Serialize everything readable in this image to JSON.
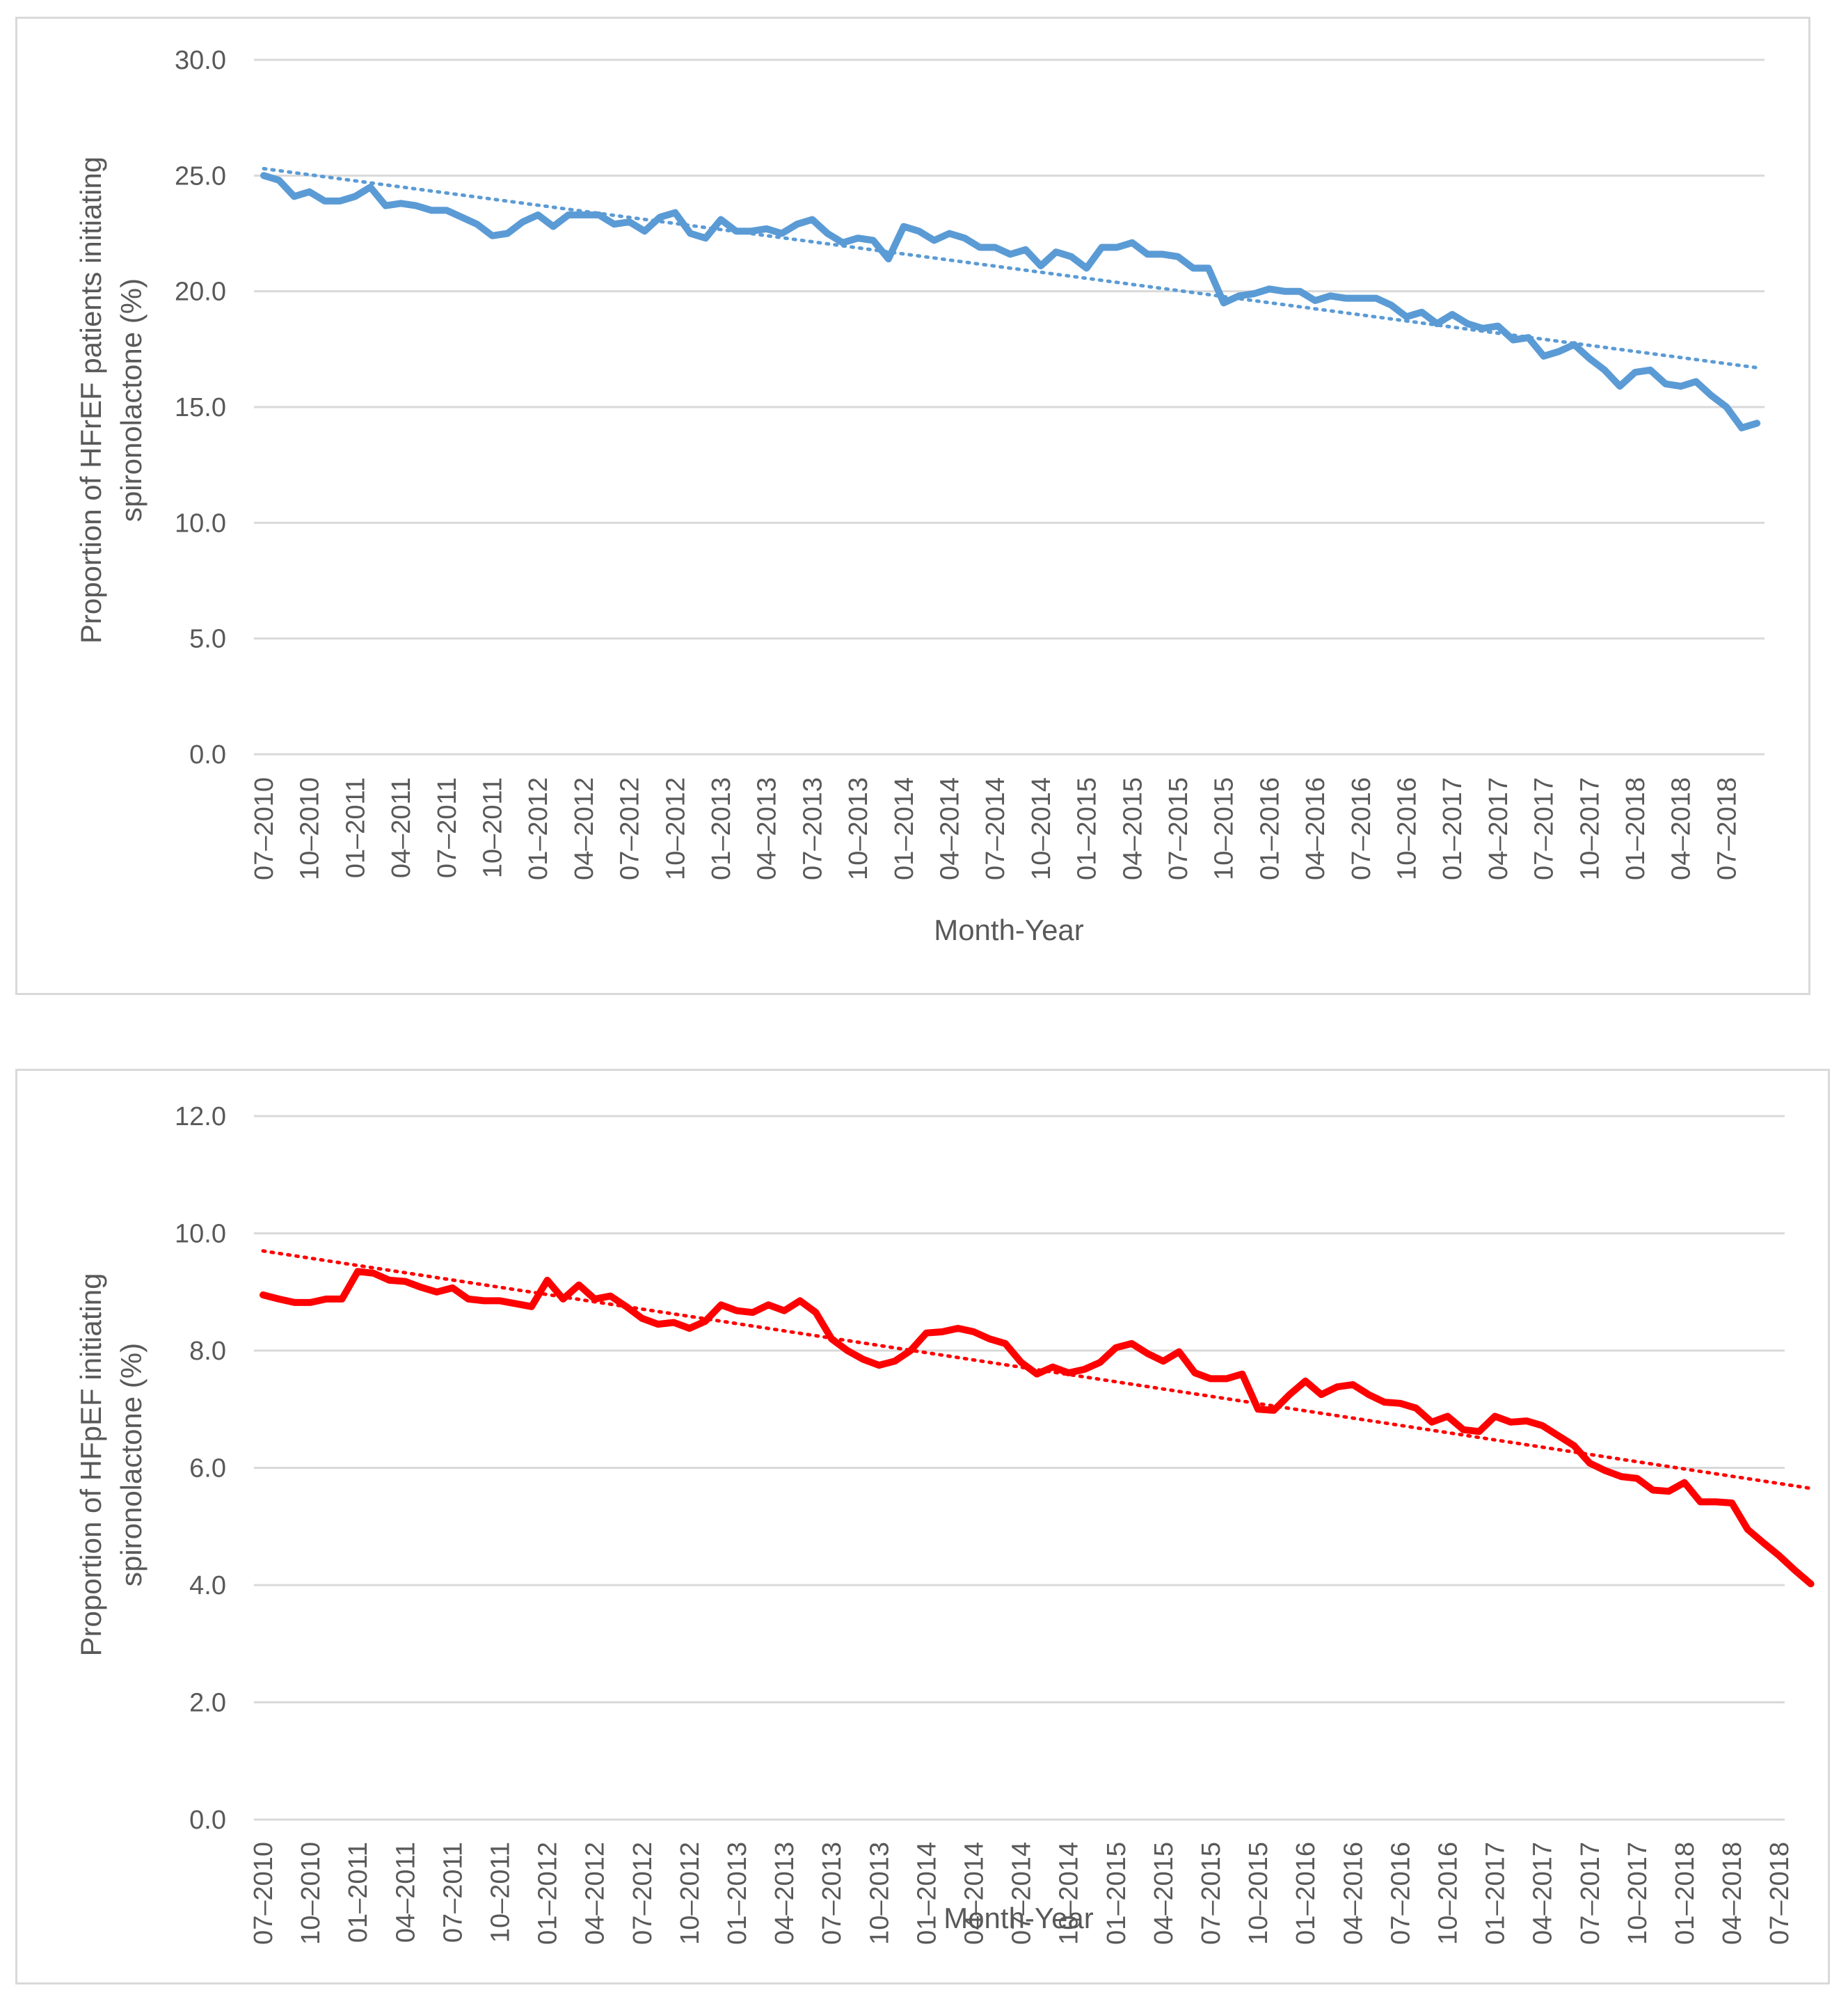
{
  "chart_data": [
    {
      "type": "line",
      "title": "",
      "xlabel": "Month-Year",
      "ylabel_line1": "Proportion of HFrEF patients initiating",
      "ylabel_line2": "spironolactone (%)",
      "ylim": [
        0,
        30
      ],
      "y_ticks": [
        "0.0",
        "5.0",
        "10.0",
        "15.0",
        "20.0",
        "25.0",
        "30.0"
      ],
      "x_tick_labels": [
        "07–2010",
        "10–2010",
        "01–2011",
        "04–2011",
        "07–2011",
        "10–2011",
        "01–2012",
        "04–2012",
        "07–2012",
        "10–2012",
        "01–2013",
        "04–2013",
        "07–2013",
        "10–2013",
        "01–2014",
        "04–2014",
        "07–2014",
        "10–2014",
        "01–2015",
        "04–2015",
        "07–2015",
        "10–2015",
        "01–2016",
        "04–2016",
        "07–2016",
        "10–2016",
        "01–2017",
        "04–2017",
        "07–2017",
        "10–2017",
        "01–2018",
        "04–2018",
        "07–2018"
      ],
      "grid": true,
      "legend": "none",
      "series": [
        {
          "name": "HFrEF",
          "color": "#5b9bd5",
          "values": [
            25.0,
            24.8,
            24.1,
            24.3,
            23.9,
            23.9,
            24.1,
            24.5,
            23.7,
            23.8,
            23.7,
            23.5,
            23.5,
            23.2,
            22.9,
            22.4,
            22.5,
            23.0,
            23.3,
            22.8,
            23.3,
            23.3,
            23.3,
            22.9,
            23.0,
            22.6,
            23.2,
            23.4,
            22.5,
            22.3,
            23.1,
            22.6,
            22.6,
            22.7,
            22.5,
            22.9,
            23.1,
            22.5,
            22.1,
            22.3,
            22.2,
            21.4,
            22.8,
            22.6,
            22.2,
            22.5,
            22.3,
            21.9,
            21.9,
            21.6,
            21.8,
            21.1,
            21.7,
            21.5,
            21.0,
            21.9,
            21.9,
            22.1,
            21.6,
            21.6,
            21.5,
            21.0,
            21.0,
            19.5,
            19.8,
            19.9,
            20.1,
            20.0,
            20.0,
            19.6,
            19.8,
            19.7,
            19.7,
            19.7,
            19.4,
            18.9,
            19.1,
            18.6,
            19.0,
            18.6,
            18.4,
            18.5,
            17.9,
            18.0,
            17.2,
            17.4,
            17.7,
            17.1,
            16.6,
            15.9,
            16.5,
            16.6,
            16.0,
            15.9,
            16.1,
            15.5,
            15.0,
            14.1,
            14.3
          ]
        }
      ],
      "trendline": {
        "style": "dotted",
        "color": "#5b9bd5",
        "start": 25.3,
        "end": 16.7
      }
    },
    {
      "type": "line",
      "title": "",
      "xlabel": "Month-Year",
      "ylabel_line1": "Proportion of HFpEF initiating",
      "ylabel_line2": "spironolactone (%)",
      "ylim": [
        0,
        12
      ],
      "y_ticks": [
        "0.0",
        "2.0",
        "4.0",
        "6.0",
        "8.0",
        "10.0",
        "12.0"
      ],
      "x_tick_labels": [
        "07–2010",
        "10–2010",
        "01–2011",
        "04–2011",
        "07–2011",
        "10–2011",
        "01–2012",
        "04–2012",
        "07–2012",
        "10–2012",
        "01–2013",
        "04–2013",
        "07–2013",
        "10–2013",
        "01–2014",
        "04–2014",
        "07–2014",
        "10–2014",
        "01–2015",
        "04–2015",
        "07–2015",
        "10–2015",
        "01–2016",
        "04–2016",
        "07–2016",
        "10–2016",
        "01–2017",
        "04–2017",
        "07–2017",
        "10–2017",
        "01–2018",
        "04–2018",
        "07–2018"
      ],
      "grid": true,
      "legend": "none",
      "series": [
        {
          "name": "HFpEF",
          "color": "#ff0000",
          "values": [
            8.95,
            8.88,
            8.82,
            8.82,
            8.88,
            8.88,
            9.35,
            9.32,
            9.2,
            9.18,
            9.08,
            9.0,
            9.07,
            8.88,
            8.85,
            8.85,
            8.8,
            8.75,
            9.2,
            8.88,
            9.12,
            8.88,
            8.93,
            8.75,
            8.55,
            8.45,
            8.48,
            8.38,
            8.5,
            8.78,
            8.68,
            8.65,
            8.78,
            8.68,
            8.85,
            8.65,
            8.2,
            8.0,
            7.85,
            7.75,
            7.82,
            8.0,
            8.3,
            8.32,
            8.38,
            8.32,
            8.2,
            8.12,
            7.8,
            7.6,
            7.72,
            7.62,
            7.68,
            7.8,
            8.05,
            8.12,
            7.95,
            7.82,
            7.98,
            7.62,
            7.52,
            7.52,
            7.6,
            7.0,
            6.98,
            7.25,
            7.48,
            7.25,
            7.38,
            7.42,
            7.25,
            7.12,
            7.1,
            7.02,
            6.78,
            6.88,
            6.65,
            6.62,
            6.88,
            6.78,
            6.8,
            6.72,
            6.55,
            6.38,
            6.08,
            5.95,
            5.85,
            5.82,
            5.62,
            5.6,
            5.75,
            5.42,
            5.42,
            5.4,
            4.95,
            4.72,
            4.5,
            4.25,
            4.02
          ]
        }
      ],
      "trendline": {
        "style": "dotted",
        "color": "#ff0000",
        "start": 9.7,
        "end": 5.65
      }
    }
  ]
}
